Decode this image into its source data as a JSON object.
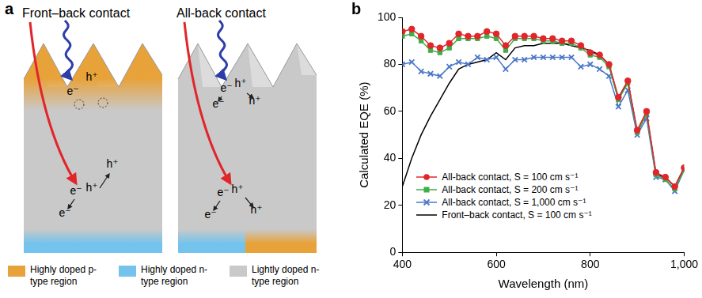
{
  "diagram": {
    "panel": "a",
    "panels": [
      {
        "title": "Front–back contact",
        "carriers": [
          "h⁺",
          "e⁻",
          "h⁺",
          "e⁻",
          "h⁺",
          "e⁻"
        ]
      },
      {
        "title": "All-back contact",
        "carriers": [
          "e⁻",
          "h⁺",
          "e⁻",
          "h⁺",
          "e⁻",
          "h⁺",
          "e⁻",
          "h⁺"
        ]
      }
    ],
    "legend": [
      {
        "label": "Highly doped p-type region",
        "color": "#e8a23a"
      },
      {
        "label": "Highly doped n-type region",
        "color": "#74c3ec"
      },
      {
        "label": "Lightly doped n-type region",
        "color": "#c9c9c9"
      }
    ]
  },
  "chart_data": {
    "panel": "b",
    "type": "line",
    "x_label": "Wavelength (nm)",
    "y_label": "Calculated EQE (%)",
    "x": [
      400,
      420,
      440,
      460,
      480,
      500,
      520,
      540,
      560,
      580,
      600,
      620,
      640,
      660,
      680,
      700,
      720,
      740,
      760,
      780,
      800,
      820,
      840,
      860,
      880,
      900,
      920,
      940,
      960,
      980,
      1000
    ],
    "xlim": [
      400,
      1000
    ],
    "xticks": [
      400,
      600,
      800,
      {
        "value": 1000,
        "label": "1,000"
      }
    ],
    "ylim": [
      0,
      100
    ],
    "yticks": [
      0,
      20,
      40,
      60,
      80,
      100
    ],
    "grid": false,
    "legend": "lower left",
    "series": [
      {
        "name": "All-back contact, S = 100 cm s⁻¹",
        "color": "#e0262b",
        "marker": "circle",
        "line_style": "solid",
        "values": [
          94,
          95,
          92,
          88,
          87,
          89,
          93,
          92,
          92,
          94,
          93,
          88,
          92,
          92,
          92,
          91,
          91,
          90,
          90,
          88,
          85,
          84,
          80,
          66,
          73,
          52,
          60,
          34,
          32,
          28,
          36
        ]
      },
      {
        "name": "All-back contact, S = 200 cm s⁻¹",
        "color": "#3fae49",
        "marker": "square",
        "line_style": "solid",
        "values": [
          92,
          93,
          90,
          86,
          85,
          87,
          91,
          91,
          91,
          92,
          91,
          86,
          91,
          91,
          91,
          90,
          90,
          89,
          89,
          87,
          84,
          83,
          79,
          65,
          72,
          51,
          59,
          33,
          31,
          27,
          35
        ]
      },
      {
        "name": "All-back contact, S = 1,000 cm s⁻¹",
        "color": "#4a78c8",
        "marker": "x",
        "line_style": "solid",
        "values": [
          80,
          81,
          77,
          76,
          75,
          79,
          81,
          80,
          83,
          82,
          83,
          78,
          82,
          82,
          83,
          83,
          83,
          83,
          83,
          79,
          80,
          78,
          75,
          62,
          69,
          50,
          57,
          32,
          31,
          26,
          35
        ]
      },
      {
        "name": "Front–back contact, S = 100 cm s⁻¹",
        "color": "#000000",
        "marker": "none",
        "line_style": "solid",
        "values": [
          28,
          40,
          50,
          58,
          65,
          72,
          78,
          80,
          81,
          82,
          85,
          82,
          87,
          88,
          88,
          89,
          89,
          89,
          88,
          87,
          86,
          84,
          80,
          65,
          73,
          51,
          59,
          33,
          32,
          28,
          36
        ]
      }
    ]
  }
}
